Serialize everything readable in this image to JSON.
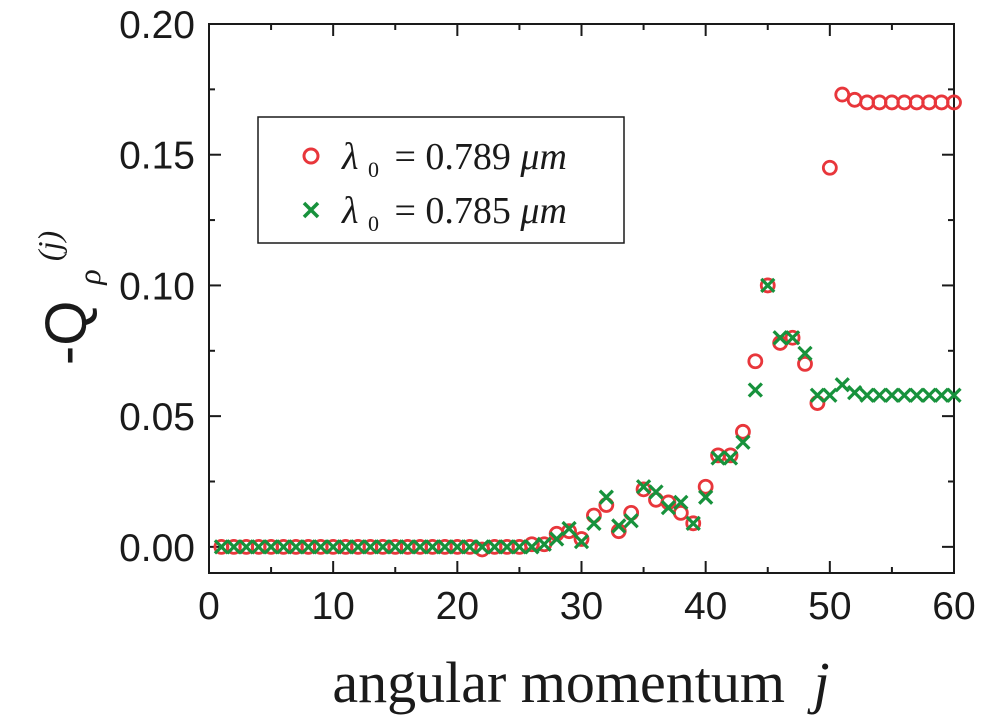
{
  "chart_data": {
    "type": "scatter",
    "xlabel": "angular momentum",
    "xlabel_var": "j",
    "ylabel": "-Q",
    "ylabel_sub": "ρ",
    "ylabel_sup": "(j)",
    "xlim": [
      0,
      60
    ],
    "ylim": [
      -0.01,
      0.2
    ],
    "xticks": [
      0,
      10,
      20,
      30,
      40,
      50,
      60
    ],
    "xtick_labels": [
      "0",
      "10",
      "20",
      "30",
      "40",
      "50",
      "60"
    ],
    "yticks": [
      0.0,
      0.05,
      0.1,
      0.15,
      0.2
    ],
    "ytick_labels": [
      "0.00",
      "0.05",
      "0.10",
      "0.15",
      "0.20"
    ],
    "grid": false,
    "legend_position": "upper-left",
    "series": [
      {
        "name_symbol": "λ",
        "name_sub": "0",
        "name_text": "= 0.789 ",
        "name_unit": "μm",
        "marker": "circle-open",
        "color": "#e8363b",
        "x": [
          1,
          2,
          3,
          4,
          5,
          6,
          7,
          8,
          9,
          10,
          11,
          12,
          13,
          14,
          15,
          16,
          17,
          18,
          19,
          20,
          21,
          22,
          23,
          24,
          25,
          26,
          27,
          28,
          29,
          30,
          31,
          32,
          33,
          34,
          35,
          36,
          37,
          38,
          39,
          40,
          41,
          42,
          43,
          44,
          45,
          46,
          47,
          48,
          49,
          50,
          51,
          52,
          53,
          54,
          55,
          56,
          57,
          58,
          59,
          60
        ],
        "y": [
          0,
          0,
          0,
          0,
          0,
          0,
          0,
          0,
          0,
          0,
          0,
          0,
          0,
          0,
          0,
          0,
          0,
          0,
          0,
          0,
          0,
          -0.001,
          0,
          0,
          0,
          0.001,
          0.001,
          0.005,
          0.006,
          0.003,
          0.012,
          0.016,
          0.006,
          0.013,
          0.022,
          0.018,
          0.017,
          0.013,
          0.009,
          0.023,
          0.035,
          0.035,
          0.044,
          0.071,
          0.1,
          0.078,
          0.08,
          0.07,
          0.055,
          0.145,
          0.173,
          0.171,
          0.17,
          0.17,
          0.17,
          0.17,
          0.17,
          0.17,
          0.17,
          0.17
        ]
      },
      {
        "name_symbol": "λ",
        "name_sub": "0",
        "name_text": "= 0.785 ",
        "name_unit": "μm",
        "marker": "x",
        "color": "#17923c",
        "x": [
          1,
          2,
          3,
          4,
          5,
          6,
          7,
          8,
          9,
          10,
          11,
          12,
          13,
          14,
          15,
          16,
          17,
          18,
          19,
          20,
          21,
          22,
          23,
          24,
          25,
          26,
          27,
          28,
          29,
          30,
          31,
          32,
          33,
          34,
          35,
          36,
          37,
          38,
          39,
          40,
          41,
          42,
          43,
          44,
          45,
          46,
          47,
          48,
          49,
          50,
          51,
          52,
          53,
          54,
          55,
          56,
          57,
          58,
          59,
          60
        ],
        "y": [
          0,
          0,
          0,
          0,
          0,
          0,
          0,
          0,
          0,
          0,
          0,
          0,
          0,
          0,
          0,
          0,
          0,
          0,
          0,
          0,
          0,
          0,
          0,
          0,
          0,
          0,
          0.001,
          0.003,
          0.007,
          0.002,
          0.009,
          0.019,
          0.008,
          0.01,
          0.023,
          0.021,
          0.015,
          0.017,
          0.009,
          0.019,
          0.034,
          0.034,
          0.04,
          0.06,
          0.1,
          0.08,
          0.08,
          0.074,
          0.058,
          0.058,
          0.062,
          0.059,
          0.058,
          0.058,
          0.058,
          0.058,
          0.058,
          0.058,
          0.058,
          0.058
        ]
      }
    ]
  }
}
